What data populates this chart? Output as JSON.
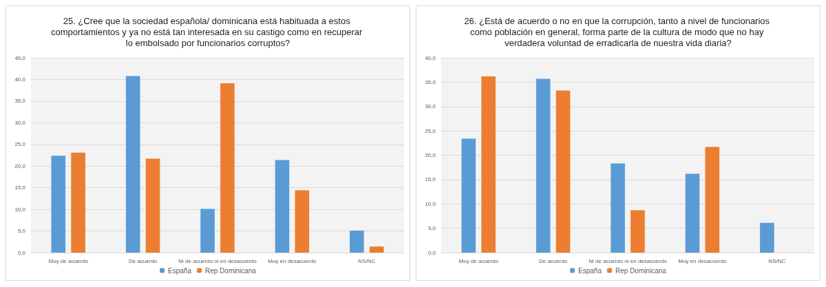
{
  "chart_data": [
    {
      "type": "bar",
      "title": "25. ¿Cree que la sociedad española/ dominicana está habituada a estos comportamientos y ya no está tan interesada en su castigo como en recuperar lo embolsado por funcionarios corruptos?",
      "categories": [
        "Muy de acuerdo",
        "De acuerdo",
        "Ni de acuerdo ni en desacuerdo",
        "Muy en desacuerdo",
        "NS/NC"
      ],
      "series": [
        {
          "name": "España",
          "color": "#5b9bd5",
          "values": [
            22.4,
            40.8,
            10.1,
            21.4,
            5.1
          ]
        },
        {
          "name": "Rep Dominicana",
          "color": "#ed7d31",
          "values": [
            23.1,
            21.7,
            39.1,
            14.4,
            1.4
          ]
        }
      ],
      "ylim": [
        0,
        45
      ],
      "yticks": [
        {
          "value": 0,
          "label": "0,0"
        },
        {
          "value": 5,
          "label": "5,0"
        },
        {
          "value": 10,
          "label": "10,0"
        },
        {
          "value": 15,
          "label": "15,0"
        },
        {
          "value": 20,
          "label": "20,0"
        },
        {
          "value": 25,
          "label": "25,0"
        },
        {
          "value": 30,
          "label": "30,0"
        },
        {
          "value": 35,
          "label": "35,0"
        },
        {
          "value": 40,
          "label": "40,0"
        },
        {
          "value": 45,
          "label": "45,0"
        }
      ],
      "grid": "y",
      "legend": "bottom"
    },
    {
      "type": "bar",
      "title": "26. ¿Está de acuerdo o no en que la corrupción, tanto a nivel de funcionarios como población en general, forma parte de la cultura de modo que no hay verdadera voluntad de erradicarla de nuestra vida diaria?",
      "categories": [
        "Muy de acuerdo",
        "De acuerdo",
        "Ni de acuerdo ni en desacuerdo",
        "Muy en desacuerdo",
        "NS/NC"
      ],
      "series": [
        {
          "name": "España",
          "color": "#5b9bd5",
          "values": [
            23.4,
            35.7,
            18.3,
            16.2,
            6.1
          ]
        },
        {
          "name": "Rep Dominicana",
          "color": "#ed7d31",
          "values": [
            36.2,
            33.3,
            8.7,
            21.7,
            0
          ]
        }
      ],
      "ylim": [
        0,
        40
      ],
      "yticks": [
        {
          "value": 0,
          "label": "0,0"
        },
        {
          "value": 5,
          "label": "5,0"
        },
        {
          "value": 10,
          "label": "10,0"
        },
        {
          "value": 15,
          "label": "15,0"
        },
        {
          "value": 20,
          "label": "20,0"
        },
        {
          "value": 25,
          "label": "25,0"
        },
        {
          "value": 30,
          "label": "30,0"
        },
        {
          "value": 35,
          "label": "35,0"
        },
        {
          "value": 40,
          "label": "40,0"
        }
      ],
      "grid": "y",
      "legend": "bottom"
    }
  ]
}
